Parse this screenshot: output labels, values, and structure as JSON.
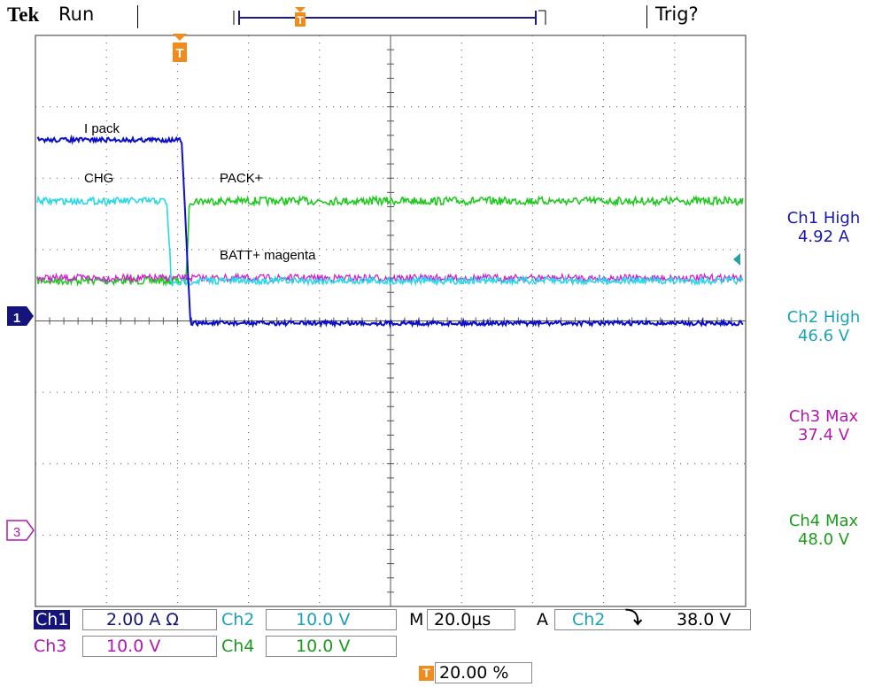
{
  "header": {
    "brand": "Tek",
    "state": "Run",
    "trigger_status": "Trig?"
  },
  "trace_labels": {
    "ipack": "I pack",
    "chg": "CHG",
    "packplus": "PACK+",
    "batt": "BATT+ magenta"
  },
  "markers": {
    "trigger_position": "T",
    "ch1_ground": "1",
    "ch3_ground": "3"
  },
  "measurements": [
    {
      "label": "Ch1 High",
      "value": "4.92 A",
      "color": "#1a1aa8"
    },
    {
      "label": "Ch2 High",
      "value": "46.6 V",
      "color": "#1ba3b5"
    },
    {
      "label": "Ch3 Max",
      "value": "37.4 V",
      "color": "#b019b0"
    },
    {
      "label": "Ch4 Max",
      "value": "48.0 V",
      "color": "#1e9b1e"
    }
  ],
  "settings": {
    "ch1": {
      "name": "Ch1",
      "scale": "2.00 A Ω"
    },
    "ch2": {
      "name": "Ch2",
      "scale": "10.0 V"
    },
    "ch3": {
      "name": "Ch3",
      "scale": "10.0 V"
    },
    "ch4": {
      "name": "Ch4",
      "scale": "10.0 V"
    },
    "timebase": {
      "prefix": "M",
      "value": "20.0µs"
    },
    "trigger": {
      "prefix": "A",
      "source": "Ch2",
      "slope": "⤵",
      "level": "38.0 V"
    },
    "trigger_position": {
      "icon": "T",
      "value": "20.00 %"
    }
  },
  "colors": {
    "ch1": "#0b10c8",
    "ch2": "#27d8e8",
    "ch3": "#d020d0",
    "ch4": "#22c822",
    "grid": "#555555"
  }
}
